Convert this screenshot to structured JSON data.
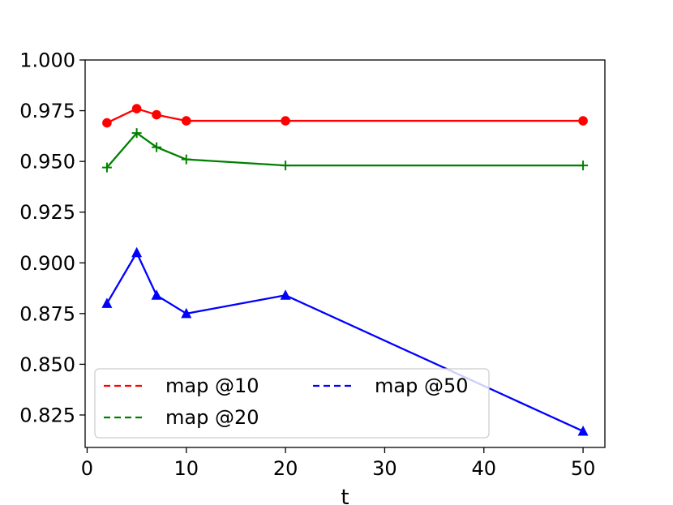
{
  "chart_data": {
    "type": "line",
    "xlabel": "t",
    "ylabel": "",
    "title": "",
    "xlim": [
      -0.2,
      52.2
    ],
    "ylim": [
      0.809,
      1.0
    ],
    "xticks": [
      0,
      10,
      20,
      30,
      40,
      50
    ],
    "xtick_labels": [
      "0",
      "10",
      "20",
      "30",
      "40",
      "50"
    ],
    "yticks": [
      0.825,
      0.85,
      0.875,
      0.9,
      0.925,
      0.95,
      0.975,
      1.0
    ],
    "ytick_labels": [
      "0.825",
      "0.850",
      "0.875",
      "0.900",
      "0.925",
      "0.950",
      "0.975",
      "1.000"
    ],
    "grid": false,
    "legend_position": "lower-left",
    "x": [
      2,
      5,
      7,
      10,
      20,
      50
    ],
    "series": [
      {
        "name": "map @10",
        "values": [
          0.969,
          0.976,
          0.973,
          0.97,
          0.97,
          0.97
        ],
        "color": "#ff0000",
        "marker": "circle"
      },
      {
        "name": "map @20",
        "values": [
          0.947,
          0.964,
          0.957,
          0.951,
          0.948,
          0.948
        ],
        "color": "#008000",
        "marker": "plus"
      },
      {
        "name": "map @50",
        "values": [
          0.88,
          0.905,
          0.884,
          0.875,
          0.884,
          0.817
        ],
        "color": "#0000ff",
        "marker": "triangle"
      }
    ]
  }
}
